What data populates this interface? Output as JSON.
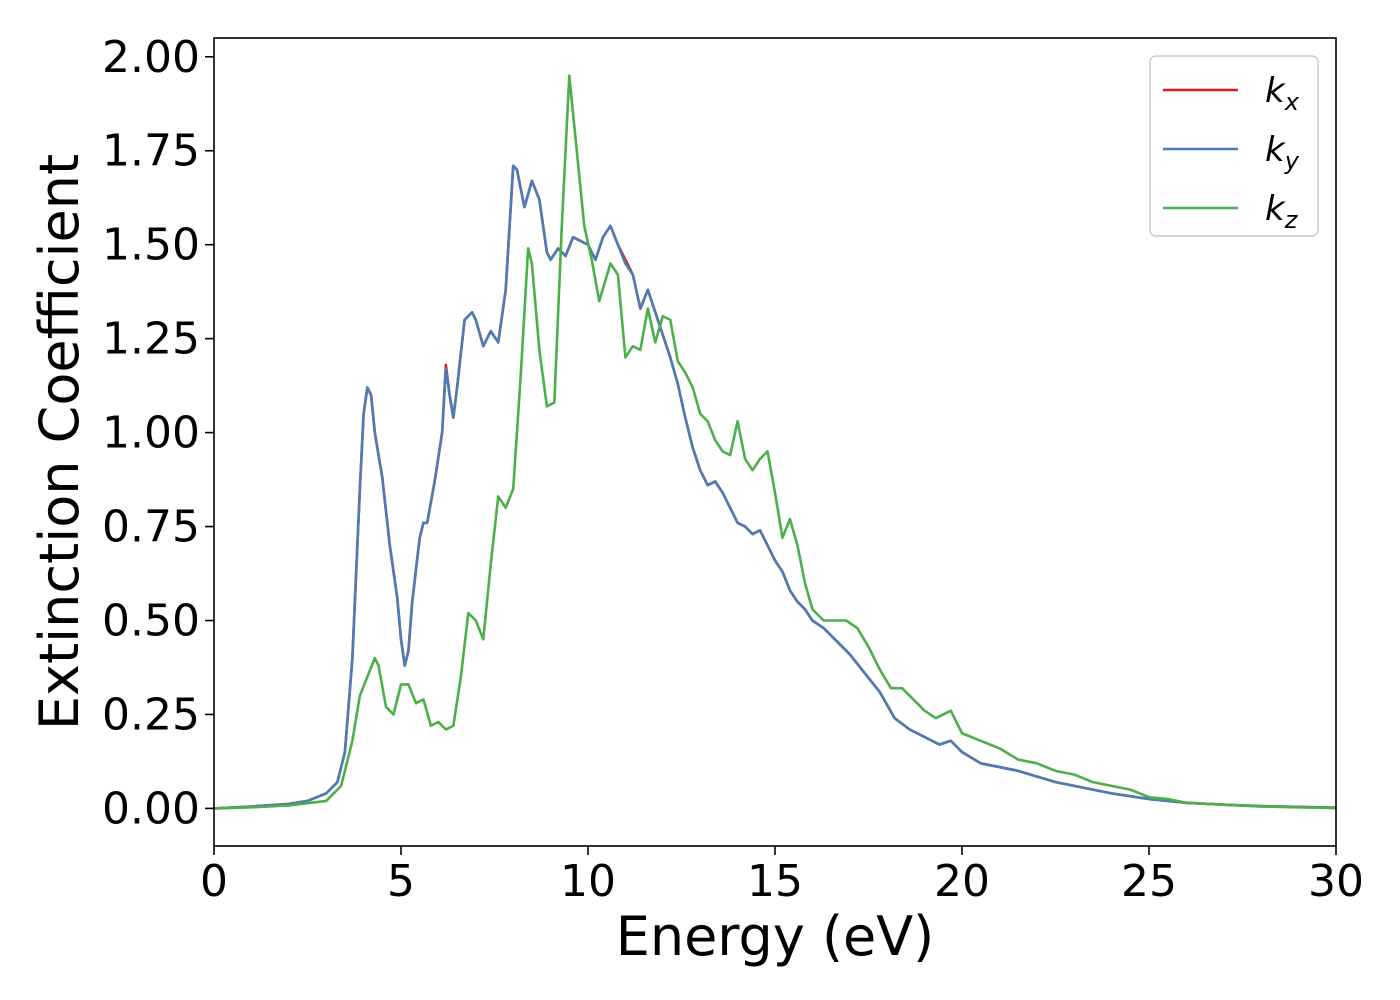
{
  "chart_data": {
    "type": "line",
    "title": "",
    "xlabel": "Energy (eV)",
    "ylabel": "Extinction Coefficient",
    "xlim": [
      0,
      30
    ],
    "ylim": [
      -0.1,
      2.05
    ],
    "xticks": [
      "0",
      "5",
      "10",
      "15",
      "20",
      "25",
      "30"
    ],
    "yticks": [
      "0.00",
      "0.25",
      "0.50",
      "0.75",
      "1.00",
      "1.25",
      "1.50",
      "1.75",
      "2.00"
    ],
    "grid": false,
    "legend_position": "top-right",
    "series": [
      {
        "name": "k_x",
        "label_main": "k",
        "label_sub": "x",
        "color": "#e41a1c",
        "x": [
          0,
          1,
          2,
          2.5,
          3,
          3.3,
          3.5,
          3.7,
          3.9,
          4.0,
          4.1,
          4.2,
          4.3,
          4.5,
          4.7,
          4.9,
          5.0,
          5.1,
          5.2,
          5.3,
          5.5,
          5.6,
          5.7,
          5.9,
          6.1,
          6.2,
          6.3,
          6.4,
          6.5,
          6.7,
          6.9,
          7.0,
          7.2,
          7.4,
          7.6,
          7.8,
          8.0,
          8.1,
          8.3,
          8.5,
          8.7,
          8.9,
          9.0,
          9.2,
          9.4,
          9.6,
          9.8,
          10.0,
          10.2,
          10.4,
          10.6,
          10.8,
          11.0,
          11.2,
          11.4,
          11.6,
          11.8,
          12.0,
          12.2,
          12.4,
          12.6,
          12.8,
          13.0,
          13.2,
          13.4,
          13.6,
          13.8,
          14.0,
          14.2,
          14.4,
          14.6,
          14.8,
          15.0,
          15.2,
          15.4,
          15.6,
          15.8,
          16.0,
          16.3,
          16.6,
          17.0,
          17.4,
          17.8,
          18.2,
          18.6,
          19.0,
          19.4,
          19.7,
          20.0,
          20.5,
          21.0,
          21.5,
          22.0,
          22.5,
          23.0,
          24.0,
          25.0,
          26.0,
          27.0,
          28.0,
          29.0,
          30.0
        ],
        "y": [
          0.0,
          0.005,
          0.012,
          0.02,
          0.04,
          0.07,
          0.15,
          0.4,
          0.85,
          1.05,
          1.12,
          1.1,
          1.0,
          0.88,
          0.7,
          0.56,
          0.45,
          0.38,
          0.42,
          0.55,
          0.72,
          0.76,
          0.76,
          0.87,
          1.0,
          1.18,
          1.1,
          1.04,
          1.12,
          1.3,
          1.32,
          1.3,
          1.23,
          1.27,
          1.24,
          1.38,
          1.71,
          1.7,
          1.6,
          1.67,
          1.62,
          1.48,
          1.46,
          1.49,
          1.47,
          1.52,
          1.51,
          1.5,
          1.46,
          1.52,
          1.55,
          1.5,
          1.46,
          1.42,
          1.33,
          1.38,
          1.32,
          1.26,
          1.2,
          1.13,
          1.04,
          0.96,
          0.9,
          0.86,
          0.87,
          0.84,
          0.8,
          0.76,
          0.75,
          0.73,
          0.74,
          0.7,
          0.66,
          0.63,
          0.58,
          0.55,
          0.53,
          0.5,
          0.48,
          0.45,
          0.41,
          0.36,
          0.31,
          0.24,
          0.21,
          0.19,
          0.17,
          0.18,
          0.15,
          0.12,
          0.11,
          0.1,
          0.085,
          0.07,
          0.06,
          0.04,
          0.025,
          0.015,
          0.01,
          0.006,
          0.004,
          0.002
        ]
      },
      {
        "name": "k_y",
        "label_main": "k",
        "label_sub": "y",
        "color": "#4a7db5",
        "x": [
          0,
          1,
          2,
          2.5,
          3,
          3.3,
          3.5,
          3.7,
          3.9,
          4.0,
          4.1,
          4.2,
          4.3,
          4.5,
          4.7,
          4.9,
          5.0,
          5.1,
          5.2,
          5.3,
          5.5,
          5.6,
          5.7,
          5.9,
          6.1,
          6.2,
          6.3,
          6.4,
          6.5,
          6.7,
          6.9,
          7.0,
          7.2,
          7.4,
          7.6,
          7.8,
          8.0,
          8.1,
          8.3,
          8.5,
          8.7,
          8.9,
          9.0,
          9.2,
          9.4,
          9.6,
          9.8,
          10.0,
          10.2,
          10.4,
          10.6,
          10.8,
          11.0,
          11.2,
          11.4,
          11.6,
          11.8,
          12.0,
          12.2,
          12.4,
          12.6,
          12.8,
          13.0,
          13.2,
          13.4,
          13.6,
          13.8,
          14.0,
          14.2,
          14.4,
          14.6,
          14.8,
          15.0,
          15.2,
          15.4,
          15.6,
          15.8,
          16.0,
          16.3,
          16.6,
          17.0,
          17.4,
          17.8,
          18.2,
          18.6,
          19.0,
          19.4,
          19.7,
          20.0,
          20.5,
          21.0,
          21.5,
          22.0,
          22.5,
          23.0,
          24.0,
          25.0,
          26.0,
          27.0,
          28.0,
          29.0,
          30.0
        ],
        "y": [
          0.0,
          0.005,
          0.012,
          0.02,
          0.04,
          0.07,
          0.15,
          0.4,
          0.85,
          1.05,
          1.12,
          1.1,
          1.0,
          0.88,
          0.7,
          0.56,
          0.45,
          0.38,
          0.42,
          0.55,
          0.72,
          0.76,
          0.76,
          0.87,
          1.0,
          1.17,
          1.1,
          1.04,
          1.12,
          1.3,
          1.32,
          1.3,
          1.23,
          1.27,
          1.24,
          1.38,
          1.71,
          1.7,
          1.6,
          1.67,
          1.62,
          1.48,
          1.46,
          1.49,
          1.47,
          1.52,
          1.51,
          1.5,
          1.46,
          1.52,
          1.55,
          1.5,
          1.45,
          1.42,
          1.33,
          1.38,
          1.32,
          1.26,
          1.2,
          1.13,
          1.04,
          0.96,
          0.9,
          0.86,
          0.87,
          0.84,
          0.8,
          0.76,
          0.75,
          0.73,
          0.74,
          0.7,
          0.66,
          0.63,
          0.58,
          0.55,
          0.53,
          0.5,
          0.48,
          0.45,
          0.41,
          0.36,
          0.31,
          0.24,
          0.21,
          0.19,
          0.17,
          0.18,
          0.15,
          0.12,
          0.11,
          0.1,
          0.085,
          0.07,
          0.06,
          0.04,
          0.025,
          0.015,
          0.01,
          0.006,
          0.004,
          0.002
        ]
      },
      {
        "name": "k_z",
        "label_main": "k",
        "label_sub": "z",
        "color": "#4daf4a",
        "x": [
          0,
          1,
          2,
          3,
          3.4,
          3.7,
          3.9,
          4.1,
          4.3,
          4.4,
          4.6,
          4.8,
          5.0,
          5.2,
          5.4,
          5.6,
          5.8,
          6.0,
          6.2,
          6.4,
          6.6,
          6.8,
          7.0,
          7.2,
          7.4,
          7.6,
          7.8,
          8.0,
          8.2,
          8.4,
          8.5,
          8.7,
          8.9,
          9.1,
          9.3,
          9.5,
          9.7,
          9.9,
          10.1,
          10.3,
          10.6,
          10.8,
          11.0,
          11.2,
          11.4,
          11.6,
          11.8,
          12.0,
          12.2,
          12.4,
          12.6,
          12.8,
          13.0,
          13.2,
          13.4,
          13.6,
          13.8,
          14.0,
          14.2,
          14.4,
          14.6,
          14.8,
          15.0,
          15.2,
          15.4,
          15.6,
          15.8,
          16.0,
          16.3,
          16.6,
          16.9,
          17.2,
          17.5,
          17.8,
          18.1,
          18.4,
          18.7,
          19.0,
          19.3,
          19.5,
          19.7,
          20.0,
          20.5,
          21.0,
          21.5,
          22.0,
          22.5,
          23.0,
          23.5,
          24.0,
          24.5,
          25.0,
          25.5,
          26.0,
          27.0,
          28.0,
          29.0,
          30.0
        ],
        "y": [
          0.0,
          0.003,
          0.008,
          0.02,
          0.06,
          0.18,
          0.3,
          0.35,
          0.4,
          0.38,
          0.27,
          0.25,
          0.33,
          0.33,
          0.28,
          0.29,
          0.22,
          0.23,
          0.21,
          0.22,
          0.35,
          0.52,
          0.5,
          0.45,
          0.65,
          0.83,
          0.8,
          0.85,
          1.15,
          1.49,
          1.45,
          1.22,
          1.07,
          1.08,
          1.55,
          1.95,
          1.75,
          1.55,
          1.46,
          1.35,
          1.45,
          1.42,
          1.2,
          1.23,
          1.22,
          1.33,
          1.24,
          1.31,
          1.3,
          1.19,
          1.16,
          1.12,
          1.05,
          1.03,
          0.98,
          0.95,
          0.94,
          1.03,
          0.93,
          0.9,
          0.93,
          0.95,
          0.84,
          0.72,
          0.77,
          0.7,
          0.6,
          0.53,
          0.5,
          0.5,
          0.5,
          0.48,
          0.43,
          0.37,
          0.32,
          0.32,
          0.29,
          0.26,
          0.24,
          0.25,
          0.26,
          0.2,
          0.18,
          0.16,
          0.13,
          0.12,
          0.1,
          0.09,
          0.07,
          0.06,
          0.05,
          0.03,
          0.025,
          0.015,
          0.01,
          0.005,
          0.003,
          0.001
        ]
      }
    ]
  }
}
